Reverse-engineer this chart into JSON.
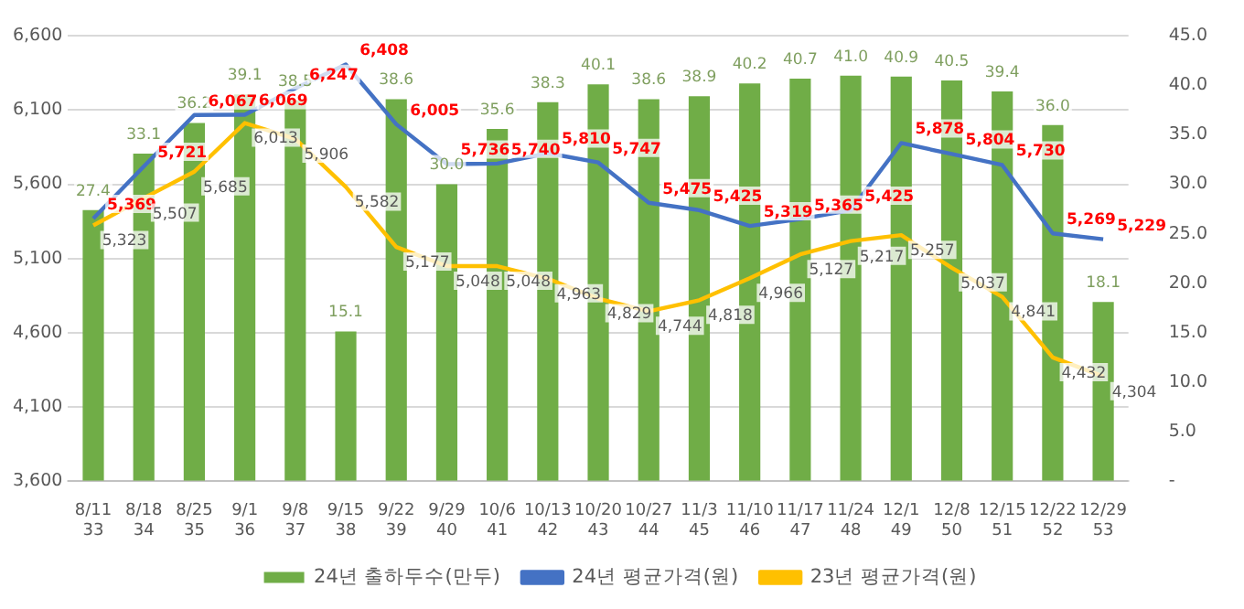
{
  "chart_data": {
    "type": "bar",
    "categories": [
      "8/11\n33",
      "8/18\n34",
      "8/25\n35",
      "9/1\n36",
      "9/8\n37",
      "9/15\n38",
      "9/22\n39",
      "9/29\n40",
      "10/6\n41",
      "10/13\n42",
      "10/20\n43",
      "10/27\n44",
      "11/3\n45",
      "11/10\n46",
      "11/17\n47",
      "11/24\n48",
      "12/1\n49",
      "12/8\n50",
      "12/15\n51",
      "12/22\n52",
      "12/29\n53"
    ],
    "series": [
      {
        "name": "24년 출하두수(만두)",
        "axis": "y2",
        "color": "#70ad47",
        "values": [
          27.4,
          33.1,
          36.2,
          39.1,
          38.5,
          15.1,
          38.6,
          30.0,
          35.6,
          38.3,
          40.1,
          38.6,
          38.9,
          40.2,
          40.7,
          41.0,
          40.9,
          40.5,
          39.4,
          36.0,
          18.1
        ],
        "value_labels": [
          "27.4",
          "33.1",
          "36.2",
          "39.1",
          "38.5",
          "15.1",
          "38.6",
          "30.0",
          "35.6",
          "38.3",
          "40.1",
          "38.6",
          "38.9",
          "40.2",
          "40.7",
          "41.0",
          "40.9",
          "40.5",
          "39.4",
          "36.0",
          "18.1"
        ]
      },
      {
        "name": "24년 평균가격(원)",
        "type": "line",
        "axis": "y",
        "color": "#4472c4",
        "values": [
          5369,
          5721,
          6067,
          6069,
          6247,
          6408,
          6005,
          5736,
          5740,
          5810,
          5747,
          5475,
          5425,
          5319,
          5365,
          5425,
          5878,
          5804,
          5730,
          5269,
          5229
        ],
        "value_labels": [
          "5,369",
          "5,721",
          "6,067",
          "6,069",
          "6,247",
          "6,408",
          "6,005",
          "5,736",
          "5,740",
          "5,810",
          "5,747",
          "5,475",
          "5,425",
          "5,319",
          "5,365",
          "5,425",
          "5,878",
          "5,804",
          "5,730",
          "5,269",
          "5,229"
        ]
      },
      {
        "name": "23년 평균가격(원)",
        "type": "line",
        "axis": "y",
        "color": "#ffc000",
        "values": [
          5323,
          5507,
          5685,
          6013,
          5906,
          5582,
          5177,
          5048,
          5048,
          4963,
          4829,
          4744,
          4818,
          4966,
          5127,
          5217,
          5257,
          5037,
          4841,
          4432,
          4304
        ],
        "value_labels": [
          "5,323",
          "5,507",
          "5,685",
          "6,013",
          "5,906",
          "5,582",
          "5,177",
          "5,048",
          "5,048",
          "4,963",
          "4,829",
          "4,744",
          "4,818",
          "4,966",
          "5,127",
          "5,217",
          "5,257",
          "5,037",
          "4,841",
          "4,432",
          "4,304"
        ]
      }
    ],
    "ylim": [
      3600,
      6600
    ],
    "yticks": [
      {
        "value": 3600,
        "label": "3,600"
      },
      {
        "value": 4100,
        "label": "4,100"
      },
      {
        "value": 4600,
        "label": "4,600"
      },
      {
        "value": 5100,
        "label": "5,100"
      },
      {
        "value": 5600,
        "label": "5,600"
      },
      {
        "value": 6100,
        "label": "6,100"
      },
      {
        "value": 6600,
        "label": "6,600"
      }
    ],
    "y2lim": [
      0,
      45
    ],
    "y2ticks": [
      {
        "value": 0,
        "label": "-"
      },
      {
        "value": 5,
        "label": "5.0"
      },
      {
        "value": 10,
        "label": "10.0"
      },
      {
        "value": 15,
        "label": "15.0"
      },
      {
        "value": 20,
        "label": "20.0"
      },
      {
        "value": 25,
        "label": "25.0"
      },
      {
        "value": 30,
        "label": "30.0"
      },
      {
        "value": 35,
        "label": "35.0"
      },
      {
        "value": 40,
        "label": "40.0"
      },
      {
        "value": 45,
        "label": "45.0"
      }
    ],
    "grid": "y",
    "legend": "bottom",
    "marker": "none"
  }
}
